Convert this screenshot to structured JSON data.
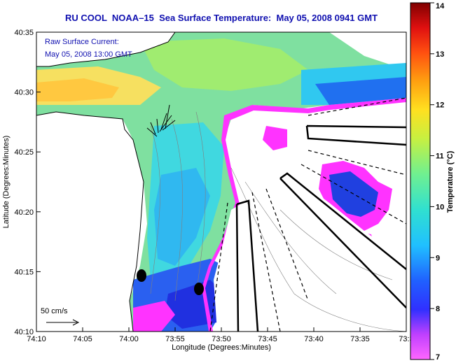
{
  "title": "RU COOL  NOAA–15  Sea Surface Temperature:  May 05, 2008 0941 GMT",
  "legend": {
    "line1": "Raw Surface Current:",
    "line2": "May 05, 2008 13:00 GMT",
    "scale_label": "50 cm/s"
  },
  "axes": {
    "xlabel": "Longitude (Degrees:Minutes)",
    "ylabel": "Latitude (Degrees:Minutes)",
    "x_ticks": [
      "74:10",
      "74:05",
      "74:00",
      "73:55",
      "73:50",
      "73:45",
      "73:40",
      "73:35",
      "73:3"
    ],
    "y_ticks": [
      "40:35",
      "40:30",
      "40:25",
      "40:20",
      "40:15",
      "40:10"
    ]
  },
  "colorbar": {
    "label": "Temperature (°C)",
    "ticks": [
      "14",
      "13",
      "12",
      "11",
      "10",
      "9",
      "8",
      "7"
    ],
    "range": [
      7,
      14
    ]
  },
  "colors": {
    "title": "#1010b0",
    "land": "#ffffff",
    "cold": "#ff00ff",
    "warm": "#ffcc33"
  }
}
